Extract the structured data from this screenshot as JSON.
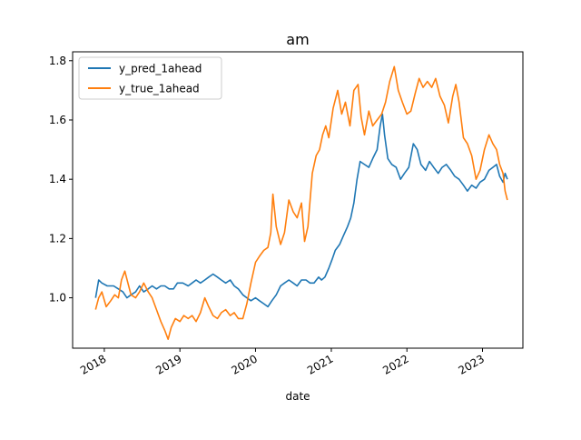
{
  "chart_data": {
    "type": "line",
    "title": "am",
    "xlabel": "date",
    "ylabel": "",
    "xlim": [
      "2017-08-01",
      "2023-07-15"
    ],
    "ylim": [
      0.83,
      1.83
    ],
    "x_ticks": [
      "2018",
      "2019",
      "2020",
      "2021",
      "2022",
      "2023"
    ],
    "y_ticks": [
      "1.0",
      "1.2",
      "1.4",
      "1.6",
      "1.8"
    ],
    "legend_position": "top-left",
    "grid": false,
    "series": [
      {
        "name": "y_pred_1ahead",
        "color": "#1f77b4",
        "points": [
          [
            "2017-11-20",
            1.0
          ],
          [
            "2017-12-05",
            1.06
          ],
          [
            "2017-12-20",
            1.05
          ],
          [
            "2018-01-15",
            1.04
          ],
          [
            "2018-02-15",
            1.04
          ],
          [
            "2018-03-10",
            1.03
          ],
          [
            "2018-04-01",
            1.02
          ],
          [
            "2018-04-20",
            1.0
          ],
          [
            "2018-05-10",
            1.01
          ],
          [
            "2018-06-01",
            1.02
          ],
          [
            "2018-06-20",
            1.04
          ],
          [
            "2018-07-10",
            1.02
          ],
          [
            "2018-08-01",
            1.03
          ],
          [
            "2018-08-20",
            1.04
          ],
          [
            "2018-09-10",
            1.03
          ],
          [
            "2018-10-01",
            1.04
          ],
          [
            "2018-10-20",
            1.04
          ],
          [
            "2018-11-10",
            1.03
          ],
          [
            "2018-12-01",
            1.03
          ],
          [
            "2018-12-20",
            1.05
          ],
          [
            "2019-01-15",
            1.05
          ],
          [
            "2019-02-10",
            1.04
          ],
          [
            "2019-03-01",
            1.05
          ],
          [
            "2019-03-20",
            1.06
          ],
          [
            "2019-04-10",
            1.05
          ],
          [
            "2019-05-01",
            1.06
          ],
          [
            "2019-05-20",
            1.07
          ],
          [
            "2019-06-10",
            1.08
          ],
          [
            "2019-07-01",
            1.07
          ],
          [
            "2019-07-20",
            1.06
          ],
          [
            "2019-08-10",
            1.05
          ],
          [
            "2019-09-01",
            1.06
          ],
          [
            "2019-09-20",
            1.04
          ],
          [
            "2019-10-10",
            1.03
          ],
          [
            "2019-11-01",
            1.01
          ],
          [
            "2019-11-20",
            1.0
          ],
          [
            "2019-12-10",
            0.99
          ],
          [
            "2020-01-01",
            1.0
          ],
          [
            "2020-01-20",
            0.99
          ],
          [
            "2020-02-10",
            0.98
          ],
          [
            "2020-03-01",
            0.97
          ],
          [
            "2020-03-20",
            0.99
          ],
          [
            "2020-04-10",
            1.01
          ],
          [
            "2020-05-01",
            1.04
          ],
          [
            "2020-05-20",
            1.05
          ],
          [
            "2020-06-10",
            1.06
          ],
          [
            "2020-07-01",
            1.05
          ],
          [
            "2020-07-20",
            1.04
          ],
          [
            "2020-08-10",
            1.06
          ],
          [
            "2020-09-01",
            1.06
          ],
          [
            "2020-09-20",
            1.05
          ],
          [
            "2020-10-10",
            1.05
          ],
          [
            "2020-11-01",
            1.07
          ],
          [
            "2020-11-15",
            1.06
          ],
          [
            "2020-12-01",
            1.07
          ],
          [
            "2020-12-20",
            1.1
          ],
          [
            "2021-01-05",
            1.13
          ],
          [
            "2021-01-20",
            1.16
          ],
          [
            "2021-02-10",
            1.18
          ],
          [
            "2021-03-01",
            1.21
          ],
          [
            "2021-03-20",
            1.24
          ],
          [
            "2021-04-05",
            1.27
          ],
          [
            "2021-04-20",
            1.32
          ],
          [
            "2021-05-05",
            1.4
          ],
          [
            "2021-05-20",
            1.46
          ],
          [
            "2021-06-10",
            1.45
          ],
          [
            "2021-07-01",
            1.44
          ],
          [
            "2021-07-20",
            1.47
          ],
          [
            "2021-08-10",
            1.5
          ],
          [
            "2021-08-25",
            1.58
          ],
          [
            "2021-09-05",
            1.62
          ],
          [
            "2021-09-15",
            1.55
          ],
          [
            "2021-10-01",
            1.47
          ],
          [
            "2021-10-20",
            1.45
          ],
          [
            "2021-11-10",
            1.44
          ],
          [
            "2021-12-01",
            1.4
          ],
          [
            "2021-12-20",
            1.42
          ],
          [
            "2022-01-10",
            1.44
          ],
          [
            "2022-02-01",
            1.52
          ],
          [
            "2022-02-20",
            1.5
          ],
          [
            "2022-03-10",
            1.45
          ],
          [
            "2022-04-01",
            1.43
          ],
          [
            "2022-04-20",
            1.46
          ],
          [
            "2022-05-10",
            1.44
          ],
          [
            "2022-06-01",
            1.42
          ],
          [
            "2022-06-20",
            1.44
          ],
          [
            "2022-07-10",
            1.45
          ],
          [
            "2022-08-01",
            1.43
          ],
          [
            "2022-08-20",
            1.41
          ],
          [
            "2022-09-10",
            1.4
          ],
          [
            "2022-10-01",
            1.38
          ],
          [
            "2022-10-20",
            1.36
          ],
          [
            "2022-11-10",
            1.38
          ],
          [
            "2022-12-01",
            1.37
          ],
          [
            "2022-12-20",
            1.39
          ],
          [
            "2023-01-10",
            1.4
          ],
          [
            "2023-02-01",
            1.43
          ],
          [
            "2023-02-20",
            1.44
          ],
          [
            "2023-03-10",
            1.45
          ],
          [
            "2023-03-25",
            1.41
          ],
          [
            "2023-04-10",
            1.39
          ],
          [
            "2023-04-20",
            1.42
          ],
          [
            "2023-05-01",
            1.4
          ]
        ]
      },
      {
        "name": "y_true_1ahead",
        "color": "#ff7f0e",
        "points": [
          [
            "2017-11-20",
            0.96
          ],
          [
            "2017-12-05",
            1.0
          ],
          [
            "2017-12-20",
            1.02
          ],
          [
            "2018-01-10",
            0.97
          ],
          [
            "2018-02-01",
            0.99
          ],
          [
            "2018-02-20",
            1.01
          ],
          [
            "2018-03-10",
            1.0
          ],
          [
            "2018-03-25",
            1.06
          ],
          [
            "2018-04-10",
            1.09
          ],
          [
            "2018-04-25",
            1.05
          ],
          [
            "2018-05-10",
            1.01
          ],
          [
            "2018-06-01",
            1.0
          ],
          [
            "2018-06-20",
            1.02
          ],
          [
            "2018-07-10",
            1.05
          ],
          [
            "2018-08-01",
            1.02
          ],
          [
            "2018-08-20",
            1.0
          ],
          [
            "2018-09-10",
            0.96
          ],
          [
            "2018-10-01",
            0.92
          ],
          [
            "2018-10-20",
            0.89
          ],
          [
            "2018-11-05",
            0.86
          ],
          [
            "2018-11-20",
            0.9
          ],
          [
            "2018-12-10",
            0.93
          ],
          [
            "2019-01-01",
            0.92
          ],
          [
            "2019-01-20",
            0.94
          ],
          [
            "2019-02-10",
            0.93
          ],
          [
            "2019-03-01",
            0.94
          ],
          [
            "2019-03-20",
            0.92
          ],
          [
            "2019-04-10",
            0.95
          ],
          [
            "2019-05-01",
            1.0
          ],
          [
            "2019-05-20",
            0.97
          ],
          [
            "2019-06-10",
            0.94
          ],
          [
            "2019-07-01",
            0.93
          ],
          [
            "2019-07-20",
            0.95
          ],
          [
            "2019-08-10",
            0.96
          ],
          [
            "2019-09-01",
            0.94
          ],
          [
            "2019-09-20",
            0.95
          ],
          [
            "2019-10-10",
            0.93
          ],
          [
            "2019-11-01",
            0.93
          ],
          [
            "2019-11-20",
            0.98
          ],
          [
            "2019-12-10",
            1.05
          ],
          [
            "2020-01-01",
            1.12
          ],
          [
            "2020-01-20",
            1.14
          ],
          [
            "2020-02-10",
            1.16
          ],
          [
            "2020-03-01",
            1.17
          ],
          [
            "2020-03-15",
            1.22
          ],
          [
            "2020-03-25",
            1.35
          ],
          [
            "2020-04-10",
            1.24
          ],
          [
            "2020-05-01",
            1.18
          ],
          [
            "2020-05-20",
            1.22
          ],
          [
            "2020-06-10",
            1.33
          ],
          [
            "2020-07-01",
            1.29
          ],
          [
            "2020-07-20",
            1.27
          ],
          [
            "2020-08-10",
            1.32
          ],
          [
            "2020-08-25",
            1.19
          ],
          [
            "2020-09-10",
            1.24
          ],
          [
            "2020-10-01",
            1.42
          ],
          [
            "2020-10-20",
            1.48
          ],
          [
            "2020-11-05",
            1.5
          ],
          [
            "2020-11-20",
            1.55
          ],
          [
            "2020-12-05",
            1.58
          ],
          [
            "2020-12-20",
            1.54
          ],
          [
            "2021-01-10",
            1.64
          ],
          [
            "2021-02-01",
            1.7
          ],
          [
            "2021-02-20",
            1.62
          ],
          [
            "2021-03-10",
            1.66
          ],
          [
            "2021-04-01",
            1.58
          ],
          [
            "2021-04-20",
            1.7
          ],
          [
            "2021-05-10",
            1.72
          ],
          [
            "2021-05-25",
            1.61
          ],
          [
            "2021-06-10",
            1.55
          ],
          [
            "2021-07-01",
            1.63
          ],
          [
            "2021-07-20",
            1.58
          ],
          [
            "2021-08-10",
            1.6
          ],
          [
            "2021-09-01",
            1.62
          ],
          [
            "2021-09-20",
            1.66
          ],
          [
            "2021-10-10",
            1.73
          ],
          [
            "2021-11-01",
            1.78
          ],
          [
            "2021-11-20",
            1.7
          ],
          [
            "2021-12-10",
            1.66
          ],
          [
            "2022-01-01",
            1.62
          ],
          [
            "2022-01-20",
            1.63
          ],
          [
            "2022-02-10",
            1.69
          ],
          [
            "2022-03-01",
            1.74
          ],
          [
            "2022-03-20",
            1.71
          ],
          [
            "2022-04-10",
            1.73
          ],
          [
            "2022-05-01",
            1.71
          ],
          [
            "2022-05-20",
            1.74
          ],
          [
            "2022-06-10",
            1.68
          ],
          [
            "2022-07-01",
            1.65
          ],
          [
            "2022-07-20",
            1.59
          ],
          [
            "2022-08-10",
            1.68
          ],
          [
            "2022-08-25",
            1.72
          ],
          [
            "2022-09-10",
            1.66
          ],
          [
            "2022-10-01",
            1.54
          ],
          [
            "2022-10-20",
            1.52
          ],
          [
            "2022-11-10",
            1.48
          ],
          [
            "2022-12-01",
            1.4
          ],
          [
            "2022-12-20",
            1.43
          ],
          [
            "2023-01-10",
            1.5
          ],
          [
            "2023-02-01",
            1.55
          ],
          [
            "2023-02-20",
            1.52
          ],
          [
            "2023-03-10",
            1.5
          ],
          [
            "2023-03-25",
            1.45
          ],
          [
            "2023-04-10",
            1.42
          ],
          [
            "2023-04-20",
            1.36
          ],
          [
            "2023-05-01",
            1.33
          ]
        ]
      }
    ]
  }
}
